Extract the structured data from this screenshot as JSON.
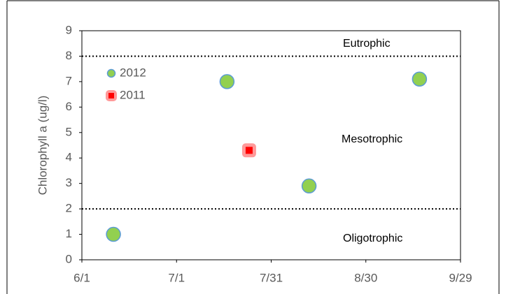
{
  "chart_data": {
    "type": "scatter",
    "ylabel": "Chlorophyll a (ug/l)",
    "xlim": [
      "6/1",
      "9/29"
    ],
    "xticks": [
      "6/1",
      "7/1",
      "7/31",
      "8/30",
      "9/29"
    ],
    "ylim": [
      0,
      9
    ],
    "yticks": [
      0,
      1,
      2,
      3,
      4,
      5,
      6,
      7,
      8,
      9
    ],
    "reference_lines": [
      8,
      2
    ],
    "annotations": [
      "Eutrophic",
      "Mesotrophic",
      "Oligotrophic"
    ],
    "legend": "top-left",
    "series": [
      {
        "name": "2012",
        "color": "#92d050",
        "x": [
          "6/11",
          "7/17",
          "8/12",
          "9/16"
        ],
        "values": [
          1,
          7,
          2.9,
          7.1
        ]
      },
      {
        "name": "2011",
        "color": "#ff0000",
        "x": [
          "7/24"
        ],
        "values": [
          4.3
        ]
      }
    ]
  }
}
